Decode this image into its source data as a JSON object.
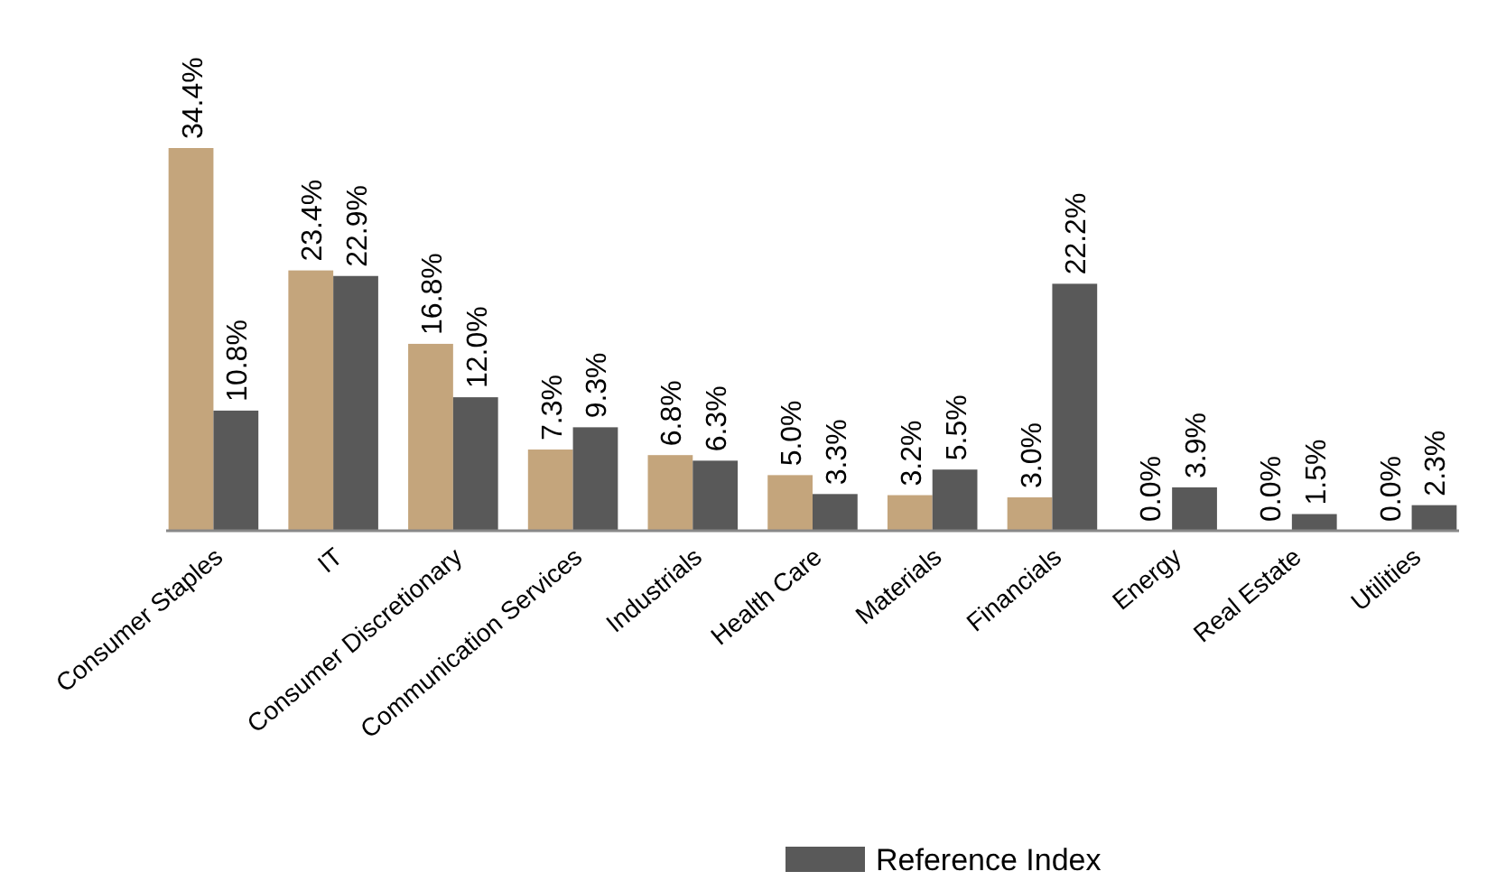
{
  "chart_data": {
    "type": "bar",
    "categories": [
      "Consumer Staples",
      "IT",
      "Consumer Discretionary",
      "Communication Services",
      "Industrials",
      "Health Care",
      "Materials",
      "Financials",
      "Energy",
      "Real Estate",
      "Utilities"
    ],
    "series": [
      {
        "color": "#c4a57c",
        "values": [
          34.4,
          23.4,
          16.8,
          7.3,
          6.8,
          5.0,
          3.2,
          3.0,
          0.0,
          0.0,
          0.0
        ],
        "value_labels": [
          "34.4%",
          "23.4%",
          "16.8%",
          "7.3%",
          "6.8%",
          "5.0%",
          "3.2%",
          "3.0%",
          "0.0%",
          "0.0%",
          "0.0%"
        ]
      },
      {
        "name": "Reference Index",
        "color": "#595959",
        "values": [
          10.8,
          22.9,
          12.0,
          9.3,
          6.3,
          3.3,
          5.5,
          22.2,
          3.9,
          1.5,
          2.3
        ],
        "value_labels": [
          "10.8%",
          "22.9%",
          "12.0%",
          "9.3%",
          "6.3%",
          "3.3%",
          "5.5%",
          "22.2%",
          "3.9%",
          "1.5%",
          "2.3%"
        ]
      }
    ],
    "legend": "bottom"
  }
}
